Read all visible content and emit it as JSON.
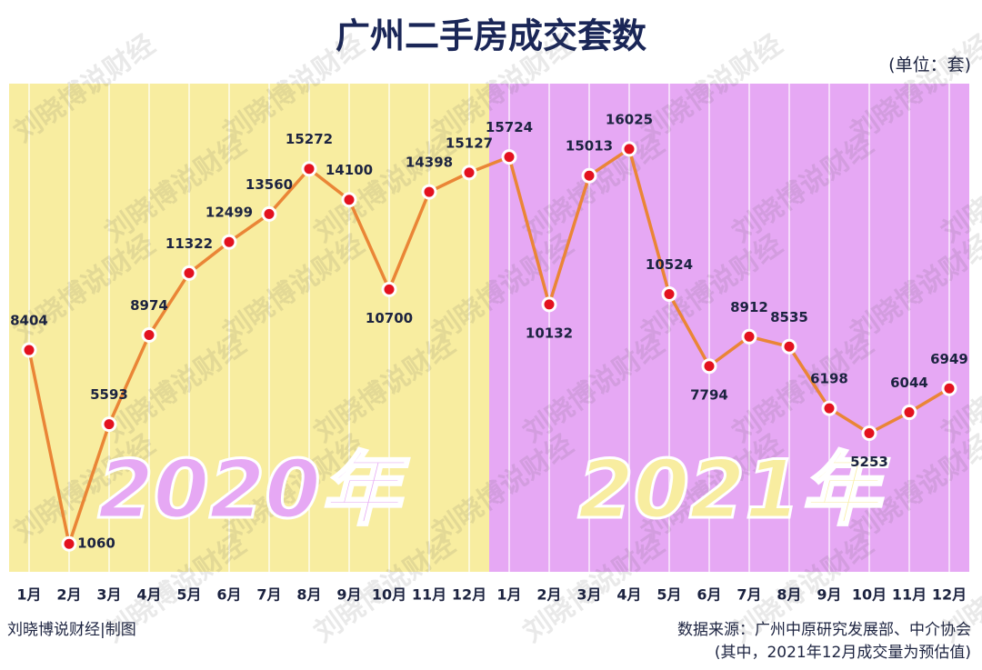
{
  "chart_data": {
    "type": "line",
    "title": "广州二手房成交套数",
    "unit_note": "(单位：套)",
    "watermark": "刘晓博说财经",
    "categories": [
      "1月",
      "2月",
      "3月",
      "4月",
      "5月",
      "6月",
      "7月",
      "8月",
      "9月",
      "10月",
      "11月",
      "12月",
      "1月",
      "2月",
      "3月",
      "4月",
      "5月",
      "6月",
      "7月",
      "8月",
      "9月",
      "10月",
      "11月",
      "12月"
    ],
    "series": [
      {
        "name": "广州二手房成交套数",
        "color": "#ea8536",
        "values": [
          8404,
          1060,
          5593,
          8974,
          11322,
          12499,
          13560,
          15272,
          14100,
          10700,
          14398,
          15127,
          15724,
          10132,
          15013,
          16025,
          10524,
          7794,
          8912,
          8535,
          6198,
          5253,
          6044,
          6949
        ]
      }
    ],
    "periods": [
      {
        "label": "2020年",
        "color": "#f8eda0"
      },
      {
        "label": "2021年",
        "color": "#e6a8f4"
      }
    ],
    "ylim": [
      0,
      18500
    ],
    "footer_left": "刘晓博说财经|制图",
    "source": "数据来源：广州中原研究发展部、中介协会",
    "source_note": "(其中，2021年12月成交量为预估值)"
  }
}
